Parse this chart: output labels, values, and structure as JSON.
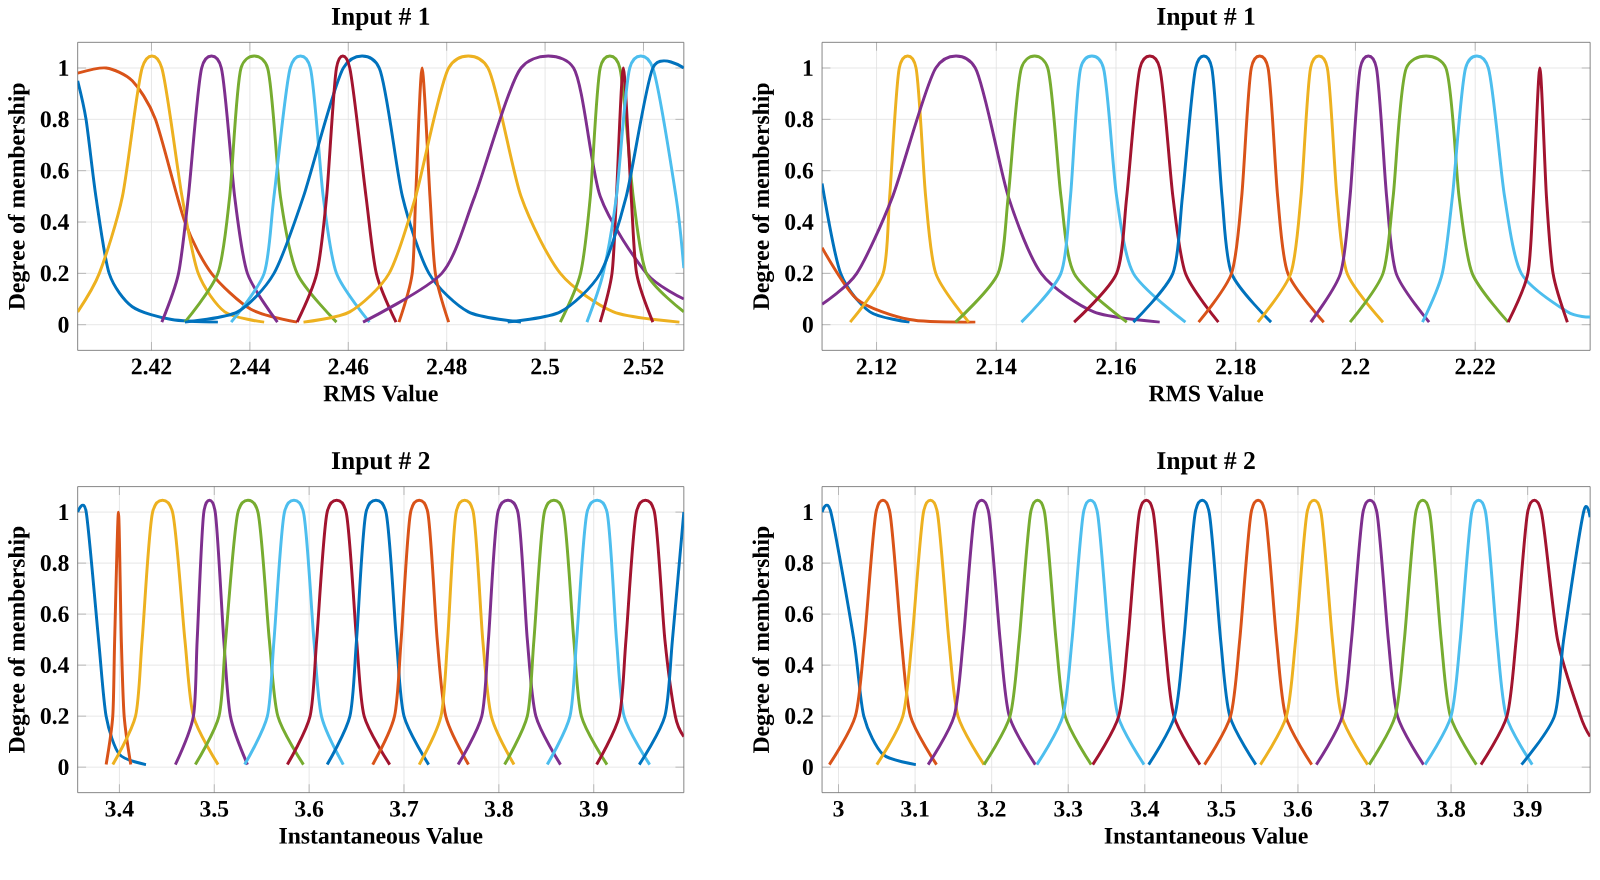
{
  "chart_data": [
    {
      "type": "line",
      "title": "Input # 1",
      "xlabel": "RMS Value",
      "ylabel": "Degree of membership",
      "xlim": [
        2.405,
        2.5282
      ],
      "ylim": [
        -0.1,
        1.1
      ],
      "xticks": [
        2.42,
        2.44,
        2.46,
        2.48,
        2.5,
        2.52
      ],
      "yticks": [
        0,
        0.2,
        0.4,
        0.6,
        0.8,
        1
      ],
      "grid": true,
      "series": [
        {
          "color": "#0072bd",
          "x": [
            2.405,
            2.4067,
            2.4087,
            2.4114,
            2.4161,
            2.4241,
            2.4335
          ],
          "values": [
            0.95,
            0.8,
            0.5,
            0.2,
            0.07,
            0.02,
            0.01
          ]
        },
        {
          "color": "#d95319",
          "x": [
            2.405,
            2.4108,
            2.4161,
            2.4208,
            2.4268,
            2.4322,
            2.4402,
            2.4496
          ],
          "values": [
            0.98,
            1,
            0.95,
            0.8,
            0.4,
            0.2,
            0.06,
            0.01
          ]
        },
        {
          "color": "#edb120",
          "x": [
            2.405,
            2.4094,
            2.4141,
            2.4181,
            2.4221,
            2.4262,
            2.4295,
            2.4349,
            2.4429
          ],
          "values": [
            0.05,
            0.2,
            0.5,
            1,
            1,
            0.5,
            0.2,
            0.05,
            0.01
          ]
        },
        {
          "color": "#7e2f8e",
          "x": [
            2.4221,
            2.4255,
            2.4275,
            2.4302,
            2.4342,
            2.4369,
            2.4395,
            2.4456
          ],
          "values": [
            0.01,
            0.2,
            0.5,
            1,
            1,
            0.5,
            0.2,
            0.01
          ]
        },
        {
          "color": "#77ac30",
          "x": [
            2.4268,
            2.4335,
            2.4359,
            2.4382,
            2.4436,
            2.4462,
            2.4496,
            2.4576
          ],
          "values": [
            0.01,
            0.2,
            0.5,
            1,
            1,
            0.5,
            0.2,
            0.01
          ]
        },
        {
          "color": "#4dbeee",
          "x": [
            2.4362,
            2.4429,
            2.4449,
            2.4482,
            2.4523,
            2.4549,
            2.4576,
            2.4643
          ],
          "values": [
            0.01,
            0.2,
            0.5,
            1,
            1,
            0.5,
            0.2,
            0.01
          ]
        },
        {
          "color": "#0072bd",
          "x": [
            2.4268,
            2.4375,
            2.4449,
            2.4509,
            2.459,
            2.4663,
            2.471,
            2.4764,
            2.4844,
            2.4951
          ],
          "values": [
            0.01,
            0.05,
            0.2,
            0.5,
            1,
            1,
            0.5,
            0.2,
            0.05,
            0.01
          ]
        },
        {
          "color": "#a2142f",
          "x": [
            2.4496,
            2.4536,
            2.4556,
            2.4576,
            2.4603,
            2.4636,
            2.4657,
            2.4697
          ],
          "values": [
            0.01,
            0.2,
            0.5,
            1,
            1,
            0.5,
            0.2,
            0.01
          ]
        },
        {
          "color": "#d95319",
          "x": [
            2.4703,
            2.473,
            2.4737,
            2.475,
            2.4766,
            2.4777,
            2.4804
          ],
          "values": [
            0.01,
            0.2,
            0.5,
            1,
            0.5,
            0.2,
            0.01
          ]
        },
        {
          "color": "#edb120",
          "x": [
            2.4509,
            2.4603,
            2.4683,
            2.4737,
            2.4804,
            2.4884,
            2.4951,
            2.5031,
            2.5139,
            2.5273
          ],
          "values": [
            0.01,
            0.05,
            0.2,
            0.5,
            1,
            1,
            0.5,
            0.2,
            0.05,
            0.01
          ]
        },
        {
          "color": "#7e2f8e",
          "x": [
            2.463,
            2.479,
            2.4857,
            2.4951,
            2.5058,
            2.5112,
            2.5206,
            2.5282
          ],
          "values": [
            0.01,
            0.2,
            0.5,
            1,
            1,
            0.5,
            0.2,
            0.1
          ]
        },
        {
          "color": "#77ac30",
          "x": [
            2.5031,
            2.5072,
            2.5092,
            2.5112,
            2.5152,
            2.5179,
            2.5206,
            2.5282
          ],
          "values": [
            0.01,
            0.2,
            0.5,
            1,
            1,
            0.5,
            0.2,
            0.05
          ]
        },
        {
          "color": "#a2142f",
          "x": [
            2.5112,
            2.5136,
            2.5145,
            2.5159,
            2.5175,
            2.5186,
            2.5219
          ],
          "values": [
            0.01,
            0.2,
            0.5,
            1,
            0.5,
            0.2,
            0.01
          ]
        },
        {
          "color": "#4dbeee",
          "x": [
            2.5085,
            2.5118,
            2.5145,
            2.5172,
            2.5219,
            2.5266,
            2.5282
          ],
          "values": [
            0.01,
            0.2,
            0.5,
            1,
            1,
            0.5,
            0.22
          ]
        },
        {
          "color": "#0072bd",
          "x": [
            2.4924,
            2.5031,
            2.5112,
            2.5165,
            2.5219,
            2.5282
          ],
          "values": [
            0.01,
            0.05,
            0.2,
            0.5,
            1,
            1
          ]
        }
      ]
    },
    {
      "type": "line",
      "title": "Input # 1",
      "xlabel": "RMS Value",
      "ylabel": "Degree of membership",
      "xlim": [
        2.1109,
        2.2392
      ],
      "ylim": [
        -0.1,
        1.1
      ],
      "xticks": [
        2.12,
        2.14,
        2.16,
        2.18,
        2.2,
        2.22
      ],
      "yticks": [
        0,
        0.2,
        0.4,
        0.6,
        0.8,
        1
      ],
      "grid": true,
      "series": [
        {
          "color": "#0072bd",
          "x": [
            2.1109,
            2.114,
            2.1189,
            2.1255
          ],
          "values": [
            0.55,
            0.2,
            0.05,
            0.01
          ]
        },
        {
          "color": "#d95319",
          "x": [
            2.1109,
            2.1167,
            2.1255,
            2.1365
          ],
          "values": [
            0.3,
            0.1,
            0.02,
            0.01
          ]
        },
        {
          "color": "#edb120",
          "x": [
            2.1156,
            2.1211,
            2.1222,
            2.1238,
            2.1266,
            2.1282,
            2.1299,
            2.1354
          ],
          "values": [
            0.01,
            0.2,
            0.5,
            1,
            1,
            0.5,
            0.2,
            0.01
          ]
        },
        {
          "color": "#7e2f8e",
          "x": [
            2.1109,
            2.1167,
            2.1227,
            2.1299,
            2.1365,
            2.142,
            2.1475,
            2.1563,
            2.1673
          ],
          "values": [
            0.08,
            0.2,
            0.5,
            1,
            1,
            0.5,
            0.2,
            0.05,
            0.01
          ]
        },
        {
          "color": "#77ac30",
          "x": [
            2.1332,
            2.1403,
            2.142,
            2.1442,
            2.1486,
            2.1508,
            2.153,
            2.1618
          ],
          "values": [
            0.01,
            0.2,
            0.5,
            1,
            1,
            0.5,
            0.2,
            0.01
          ]
        },
        {
          "color": "#4dbeee",
          "x": [
            2.1442,
            2.1508,
            2.1524,
            2.1541,
            2.1579,
            2.1601,
            2.1629,
            2.1716
          ],
          "values": [
            0.01,
            0.2,
            0.5,
            1,
            1,
            0.5,
            0.2,
            0.01
          ]
        },
        {
          "color": "#a2142f",
          "x": [
            2.153,
            2.1601,
            2.1618,
            2.164,
            2.1673,
            2.1695,
            2.1716,
            2.1771
          ],
          "values": [
            0.01,
            0.2,
            0.5,
            1,
            1,
            0.5,
            0.2,
            0.01
          ]
        },
        {
          "color": "#0072bd",
          "x": [
            2.1629,
            2.1695,
            2.1711,
            2.1733,
            2.176,
            2.1777,
            2.1793,
            2.1859
          ],
          "values": [
            0.01,
            0.2,
            0.5,
            1,
            1,
            0.5,
            0.2,
            0.01
          ]
        },
        {
          "color": "#d95319",
          "x": [
            2.1738,
            2.1793,
            2.181,
            2.1826,
            2.1854,
            2.187,
            2.1887,
            2.1947
          ],
          "values": [
            0.01,
            0.2,
            0.5,
            1,
            1,
            0.5,
            0.2,
            0.01
          ]
        },
        {
          "color": "#edb120",
          "x": [
            2.1837,
            2.1892,
            2.1909,
            2.1925,
            2.1953,
            2.1969,
            2.1986,
            2.2046
          ],
          "values": [
            0.01,
            0.2,
            0.5,
            1,
            1,
            0.5,
            0.2,
            0.01
          ]
        },
        {
          "color": "#7e2f8e",
          "x": [
            2.1925,
            2.1975,
            2.1991,
            2.2008,
            2.2035,
            2.2052,
            2.2068,
            2.2123
          ],
          "values": [
            0.01,
            0.2,
            0.5,
            1,
            1,
            0.5,
            0.2,
            0.01
          ]
        },
        {
          "color": "#77ac30",
          "x": [
            2.1991,
            2.2046,
            2.2063,
            2.2085,
            2.2151,
            2.2173,
            2.2195,
            2.2255
          ],
          "values": [
            0.01,
            0.2,
            0.5,
            1,
            1,
            0.5,
            0.2,
            0.01
          ]
        },
        {
          "color": "#4dbeee",
          "x": [
            2.2112,
            2.2145,
            2.2162,
            2.2184,
            2.2222,
            2.2249,
            2.2277,
            2.2354,
            2.2392
          ],
          "values": [
            0.01,
            0.2,
            0.5,
            1,
            1,
            0.5,
            0.2,
            0.05,
            0.03
          ]
        },
        {
          "color": "#a2142f",
          "x": [
            2.2255,
            2.2288,
            2.2297,
            2.2308,
            2.2319,
            2.233,
            2.2354
          ],
          "values": [
            0.01,
            0.2,
            0.5,
            1,
            0.5,
            0.2,
            0.01
          ]
        }
      ]
    },
    {
      "type": "line",
      "title": "Input # 2",
      "xlabel": "Instantaneous Value",
      "ylabel": "Degree of membership",
      "xlim": [
        3.356,
        3.995
      ],
      "ylim": [
        -0.1,
        1.1
      ],
      "xticks": [
        3.4,
        3.5,
        3.6,
        3.7,
        3.8,
        3.9
      ],
      "yticks": [
        0,
        0.2,
        0.4,
        0.6,
        0.8,
        1
      ],
      "grid": true,
      "series": [
        {
          "color": "#0072bd",
          "x": [
            3.356,
            3.365,
            3.378,
            3.386,
            3.4,
            3.428
          ],
          "values": [
            1,
            1,
            0.5,
            0.2,
            0.05,
            0.01
          ]
        },
        {
          "color": "#d95319",
          "x": [
            3.386,
            3.393,
            3.395,
            3.399,
            3.402,
            3.405,
            3.412
          ],
          "values": [
            0.01,
            0.2,
            0.5,
            1,
            0.5,
            0.2,
            0.01
          ]
        },
        {
          "color": "#edb120",
          "x": [
            3.393,
            3.417,
            3.424,
            3.435,
            3.456,
            3.469,
            3.478,
            3.504
          ],
          "values": [
            0.01,
            0.2,
            0.5,
            1,
            1,
            0.5,
            0.2,
            0.01
          ]
        },
        {
          "color": "#7e2f8e",
          "x": [
            3.459,
            3.478,
            3.482,
            3.489,
            3.501,
            3.51,
            3.517,
            3.535
          ],
          "values": [
            0.01,
            0.2,
            0.5,
            1,
            1,
            0.5,
            0.2,
            0.01
          ]
        },
        {
          "color": "#77ac30",
          "x": [
            3.48,
            3.505,
            3.512,
            3.525,
            3.546,
            3.558,
            3.567,
            3.594
          ],
          "values": [
            0.01,
            0.2,
            0.5,
            1,
            1,
            0.5,
            0.2,
            0.01
          ]
        },
        {
          "color": "#4dbeee",
          "x": [
            3.532,
            3.556,
            3.563,
            3.574,
            3.594,
            3.605,
            3.613,
            3.636
          ],
          "values": [
            0.01,
            0.2,
            0.5,
            1,
            1,
            0.5,
            0.2,
            0.01
          ]
        },
        {
          "color": "#a2142f",
          "x": [
            3.577,
            3.601,
            3.608,
            3.619,
            3.639,
            3.65,
            3.658,
            3.685
          ],
          "values": [
            0.01,
            0.2,
            0.5,
            1,
            1,
            0.5,
            0.2,
            0.01
          ]
        },
        {
          "color": "#0072bd",
          "x": [
            3.619,
            3.643,
            3.65,
            3.66,
            3.681,
            3.692,
            3.7,
            3.726
          ],
          "values": [
            0.01,
            0.2,
            0.5,
            1,
            1,
            0.5,
            0.2,
            0.01
          ]
        },
        {
          "color": "#d95319",
          "x": [
            3.667,
            3.69,
            3.697,
            3.707,
            3.725,
            3.735,
            3.744,
            3.768
          ],
          "values": [
            0.01,
            0.2,
            0.5,
            1,
            1,
            0.5,
            0.2,
            0.01
          ]
        },
        {
          "color": "#edb120",
          "x": [
            3.716,
            3.739,
            3.746,
            3.755,
            3.773,
            3.783,
            3.792,
            3.816
          ],
          "values": [
            0.01,
            0.2,
            0.5,
            1,
            1,
            0.5,
            0.2,
            0.01
          ]
        },
        {
          "color": "#7e2f8e",
          "x": [
            3.757,
            3.782,
            3.789,
            3.799,
            3.82,
            3.83,
            3.839,
            3.865
          ],
          "values": [
            0.01,
            0.2,
            0.5,
            1,
            1,
            0.5,
            0.2,
            0.01
          ]
        },
        {
          "color": "#77ac30",
          "x": [
            3.806,
            3.83,
            3.837,
            3.848,
            3.868,
            3.879,
            3.887,
            3.914
          ],
          "values": [
            0.01,
            0.2,
            0.5,
            1,
            1,
            0.5,
            0.2,
            0.01
          ]
        },
        {
          "color": "#4dbeee",
          "x": [
            3.851,
            3.875,
            3.882,
            3.893,
            3.914,
            3.924,
            3.932,
            3.959
          ],
          "values": [
            0.01,
            0.2,
            0.5,
            1,
            1,
            0.5,
            0.2,
            0.01
          ]
        },
        {
          "color": "#a2142f",
          "x": [
            3.903,
            3.927,
            3.934,
            3.945,
            3.964,
            3.975,
            3.986,
            3.995
          ],
          "values": [
            0.01,
            0.2,
            0.5,
            1,
            1,
            0.5,
            0.2,
            0.12
          ]
        },
        {
          "color": "#0072bd",
          "x": [
            3.948,
            3.975,
            3.983,
            3.995
          ],
          "values": [
            0.01,
            0.2,
            0.5,
            1
          ]
        }
      ]
    },
    {
      "type": "line",
      "title": "Input # 2",
      "xlabel": "Instantaneous Value",
      "ylabel": "Degree of membership",
      "xlim": [
        2.9785,
        3.9816
      ],
      "ylim": [
        -0.1,
        1.1
      ],
      "xticks": [
        3,
        3.1,
        3.2,
        3.3,
        3.4,
        3.5,
        3.6,
        3.7,
        3.8,
        3.9
      ],
      "yticks": [
        0,
        0.2,
        0.4,
        0.6,
        0.8,
        1
      ],
      "grid": true,
      "series": [
        {
          "color": "#0072bd",
          "x": [
            2.9785,
            2.99,
            3.02,
            3.033,
            3.058,
            3.101
          ],
          "values": [
            1,
            1,
            0.5,
            0.2,
            0.05,
            0.01
          ]
        },
        {
          "color": "#d95319",
          "x": [
            2.988,
            3.022,
            3.034,
            3.049,
            3.067,
            3.082,
            3.094,
            3.128
          ],
          "values": [
            0.01,
            0.2,
            0.5,
            1,
            1,
            0.5,
            0.2,
            0.01
          ]
        },
        {
          "color": "#edb120",
          "x": [
            3.05,
            3.084,
            3.096,
            3.111,
            3.129,
            3.144,
            3.156,
            3.19
          ],
          "values": [
            0.01,
            0.2,
            0.5,
            1,
            1,
            0.5,
            0.2,
            0.01
          ]
        },
        {
          "color": "#7e2f8e",
          "x": [
            3.117,
            3.151,
            3.163,
            3.178,
            3.196,
            3.211,
            3.223,
            3.257
          ],
          "values": [
            0.01,
            0.2,
            0.5,
            1,
            1,
            0.5,
            0.2,
            0.01
          ]
        },
        {
          "color": "#77ac30",
          "x": [
            3.19,
            3.224,
            3.236,
            3.251,
            3.269,
            3.284,
            3.296,
            3.33
          ],
          "values": [
            0.01,
            0.2,
            0.5,
            1,
            1,
            0.5,
            0.2,
            0.01
          ]
        },
        {
          "color": "#4dbeee",
          "x": [
            3.259,
            3.293,
            3.305,
            3.32,
            3.338,
            3.353,
            3.365,
            3.399
          ],
          "values": [
            0.01,
            0.2,
            0.5,
            1,
            1,
            0.5,
            0.2,
            0.01
          ]
        },
        {
          "color": "#a2142f",
          "x": [
            3.332,
            3.366,
            3.378,
            3.393,
            3.411,
            3.426,
            3.438,
            3.472
          ],
          "values": [
            0.01,
            0.2,
            0.5,
            1,
            1,
            0.5,
            0.2,
            0.01
          ]
        },
        {
          "color": "#0072bd",
          "x": [
            3.405,
            3.439,
            3.451,
            3.466,
            3.484,
            3.499,
            3.511,
            3.545
          ],
          "values": [
            0.01,
            0.2,
            0.5,
            1,
            1,
            0.5,
            0.2,
            0.01
          ]
        },
        {
          "color": "#d95319",
          "x": [
            3.478,
            3.512,
            3.524,
            3.539,
            3.557,
            3.572,
            3.584,
            3.618
          ],
          "values": [
            0.01,
            0.2,
            0.5,
            1,
            1,
            0.5,
            0.2,
            0.01
          ]
        },
        {
          "color": "#edb120",
          "x": [
            3.551,
            3.585,
            3.597,
            3.612,
            3.63,
            3.645,
            3.657,
            3.691
          ],
          "values": [
            0.01,
            0.2,
            0.5,
            1,
            1,
            0.5,
            0.2,
            0.01
          ]
        },
        {
          "color": "#7e2f8e",
          "x": [
            3.624,
            3.658,
            3.67,
            3.685,
            3.703,
            3.718,
            3.73,
            3.764
          ],
          "values": [
            0.01,
            0.2,
            0.5,
            1,
            1,
            0.5,
            0.2,
            0.01
          ]
        },
        {
          "color": "#77ac30",
          "x": [
            3.693,
            3.727,
            3.739,
            3.754,
            3.772,
            3.787,
            3.799,
            3.833
          ],
          "values": [
            0.01,
            0.2,
            0.5,
            1,
            1,
            0.5,
            0.2,
            0.01
          ]
        },
        {
          "color": "#4dbeee",
          "x": [
            3.766,
            3.8,
            3.812,
            3.827,
            3.845,
            3.86,
            3.872,
            3.906
          ],
          "values": [
            0.01,
            0.2,
            0.5,
            1,
            1,
            0.5,
            0.2,
            0.01
          ]
        },
        {
          "color": "#a2142f",
          "x": [
            3.839,
            3.873,
            3.885,
            3.9,
            3.918,
            3.939,
            3.969,
            3.9816
          ],
          "values": [
            0.01,
            0.2,
            0.5,
            1,
            1,
            0.5,
            0.2,
            0.12
          ]
        },
        {
          "color": "#0072bd",
          "x": [
            3.892,
            3.935,
            3.947,
            3.973,
            3.9816
          ],
          "values": [
            0.01,
            0.2,
            0.5,
            1,
            0.98
          ]
        }
      ]
    }
  ]
}
